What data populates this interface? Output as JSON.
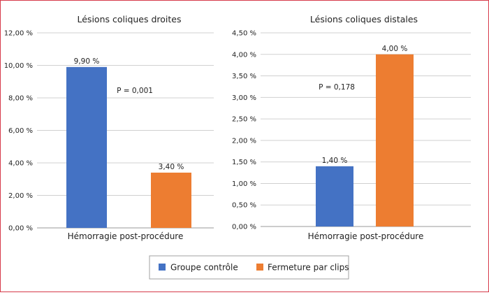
{
  "chart_data": [
    {
      "type": "bar",
      "title": "Lésions coliques droites",
      "categories": [
        "Hémorragie post-procédure"
      ],
      "series": [
        {
          "name": "Groupe contrôle",
          "values": [
            9.9
          ],
          "labels": [
            "9,90 %"
          ],
          "color": "#4472C4"
        },
        {
          "name": "Fermeture par clips",
          "values": [
            3.4
          ],
          "labels": [
            "3,40 %"
          ],
          "color": "#ED7D31"
        }
      ],
      "ylim": [
        0,
        12
      ],
      "yticks": [
        0,
        2,
        4,
        6,
        8,
        10,
        12
      ],
      "ytick_labels": [
        "0,00 %",
        "2,00 %",
        "4,00 %",
        "6,00 %",
        "8,00 %",
        "10,00 %",
        "12,00 %"
      ],
      "annotation": "P = 0,001",
      "grid": true
    },
    {
      "type": "bar",
      "title": "Lésions coliques distales",
      "categories": [
        "Hémorragie post-procédure"
      ],
      "series": [
        {
          "name": "Groupe contrôle",
          "values": [
            1.4
          ],
          "labels": [
            "1,40 %"
          ],
          "color": "#4472C4"
        },
        {
          "name": "Fermeture par clips",
          "values": [
            4.0
          ],
          "labels": [
            "4,00 %"
          ],
          "color": "#ED7D31"
        }
      ],
      "ylim": [
        0,
        4.5
      ],
      "yticks": [
        0,
        0.5,
        1,
        1.5,
        2,
        2.5,
        3,
        3.5,
        4,
        4.5
      ],
      "ytick_labels": [
        "0,00 %",
        "0,50 %",
        "1,00 %",
        "1,50 %",
        "2,00 %",
        "2,50 %",
        "3,00 %",
        "3,50 %",
        "4,00 %",
        "4,50 %"
      ],
      "annotation": "P = 0,178",
      "grid": true
    }
  ],
  "legend": {
    "placement": "bottom-center",
    "items": [
      {
        "label": "Groupe contrôle",
        "color": "#4472C4"
      },
      {
        "label": "Fermeture par clips",
        "color": "#ED7D31"
      }
    ]
  }
}
